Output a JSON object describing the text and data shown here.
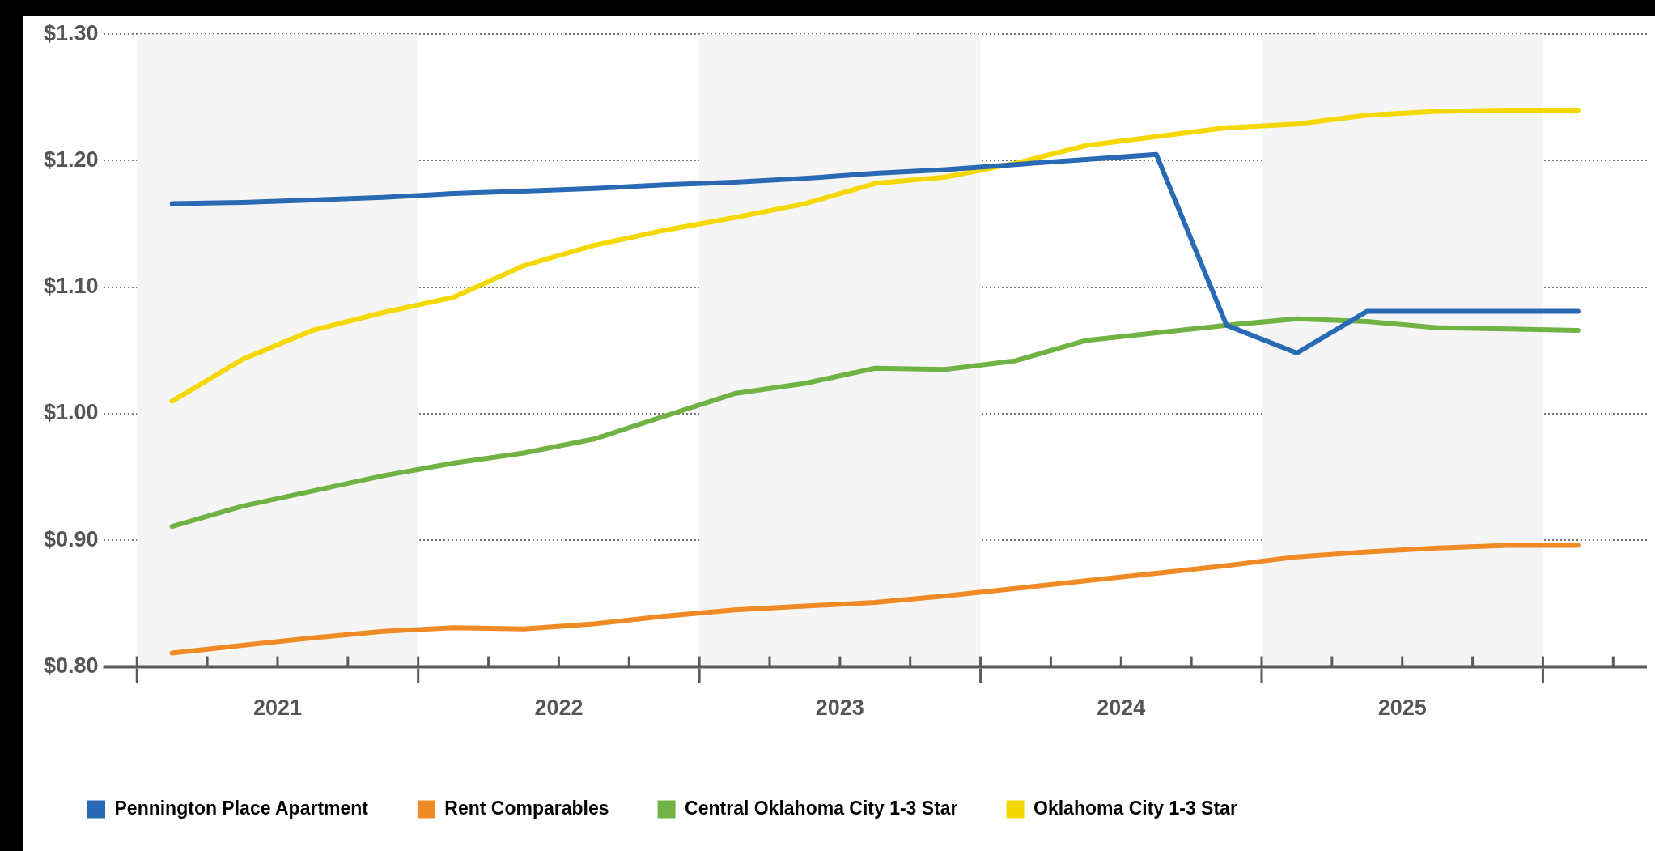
{
  "chart_data": {
    "type": "line",
    "x": [
      2021.125,
      2021.375,
      2021.625,
      2021.875,
      2022.125,
      2022.375,
      2022.625,
      2022.875,
      2023.125,
      2023.375,
      2023.625,
      2023.875,
      2024.125,
      2024.375,
      2024.625,
      2024.875,
      2025.125,
      2025.375,
      2025.625,
      2025.875,
      2026.125
    ],
    "series": [
      {
        "name": "Pennington Place Apartment",
        "color": "#2a6ab4",
        "values": [
          1.166,
          1.167,
          1.169,
          1.171,
          1.174,
          1.176,
          1.178,
          1.181,
          1.183,
          1.186,
          1.19,
          1.193,
          1.197,
          1.201,
          1.205,
          1.07,
          1.048,
          1.081,
          1.081,
          1.081,
          1.081
        ]
      },
      {
        "name": "Rent Comparables",
        "color": "#f08a24",
        "values": [
          0.811,
          0.817,
          0.823,
          0.828,
          0.831,
          0.83,
          0.834,
          0.84,
          0.845,
          0.848,
          0.851,
          0.856,
          0.862,
          0.868,
          0.874,
          0.88,
          0.887,
          0.891,
          0.894,
          0.896,
          0.896
        ]
      },
      {
        "name": "Central Oklahoma City 1-3 Star",
        "color": "#70b244",
        "values": [
          0.911,
          0.927,
          0.939,
          0.951,
          0.961,
          0.969,
          0.98,
          0.998,
          1.016,
          1.024,
          1.036,
          1.035,
          1.042,
          1.058,
          1.064,
          1.07,
          1.075,
          1.073,
          1.068,
          1.067,
          1.066
        ]
      },
      {
        "name": "Oklahoma City 1-3 Star",
        "color": "#f5d800",
        "values": [
          1.01,
          1.043,
          1.066,
          1.08,
          1.092,
          1.117,
          1.133,
          1.145,
          1.155,
          1.166,
          1.182,
          1.187,
          1.198,
          1.212,
          1.219,
          1.226,
          1.229,
          1.236,
          1.239,
          1.24,
          1.24
        ]
      }
    ],
    "xlim": [
      2020.88,
      2026.37
    ],
    "xticks": [
      {
        "value": 2021,
        "label": null
      },
      {
        "value": 2021.25,
        "label": null
      },
      {
        "value": 2021.5,
        "label": "2021"
      },
      {
        "value": 2021.75,
        "label": null
      },
      {
        "value": 2022,
        "label": null
      },
      {
        "value": 2022.25,
        "label": null
      },
      {
        "value": 2022.5,
        "label": "2022"
      },
      {
        "value": 2022.75,
        "label": null
      },
      {
        "value": 2023,
        "label": null
      },
      {
        "value": 2023.25,
        "label": null
      },
      {
        "value": 2023.5,
        "label": "2023"
      },
      {
        "value": 2023.75,
        "label": null
      },
      {
        "value": 2024,
        "label": null
      },
      {
        "value": 2024.25,
        "label": null
      },
      {
        "value": 2024.5,
        "label": "2024"
      },
      {
        "value": 2024.75,
        "label": null
      },
      {
        "value": 2025,
        "label": null
      },
      {
        "value": 2025.25,
        "label": null
      },
      {
        "value": 2025.5,
        "label": "2025"
      },
      {
        "value": 2025.75,
        "label": null
      },
      {
        "value": 2026,
        "label": null
      },
      {
        "value": 2026.25,
        "label": null
      }
    ],
    "ylim": [
      0.8,
      1.3
    ],
    "yticks": [
      {
        "value": 0.8,
        "label": "$0.80"
      },
      {
        "value": 0.9,
        "label": "$0.90"
      },
      {
        "value": 1.0,
        "label": "$1.00"
      },
      {
        "value": 1.1,
        "label": "$1.10"
      },
      {
        "value": 1.2,
        "label": "$1.20"
      },
      {
        "value": 1.3,
        "label": "$1.30"
      }
    ],
    "bands": [
      {
        "axis": "x",
        "from": 2021,
        "to": 2022,
        "color": "#f5f5f5"
      },
      {
        "axis": "x",
        "from": 2023,
        "to": 2024,
        "color": "#f5f5f5"
      },
      {
        "axis": "x",
        "from": 2025,
        "to": 2026,
        "color": "#f5f5f5"
      }
    ],
    "grid": "y",
    "legend": "bottom",
    "marker": "none",
    "line_style": "solid"
  }
}
